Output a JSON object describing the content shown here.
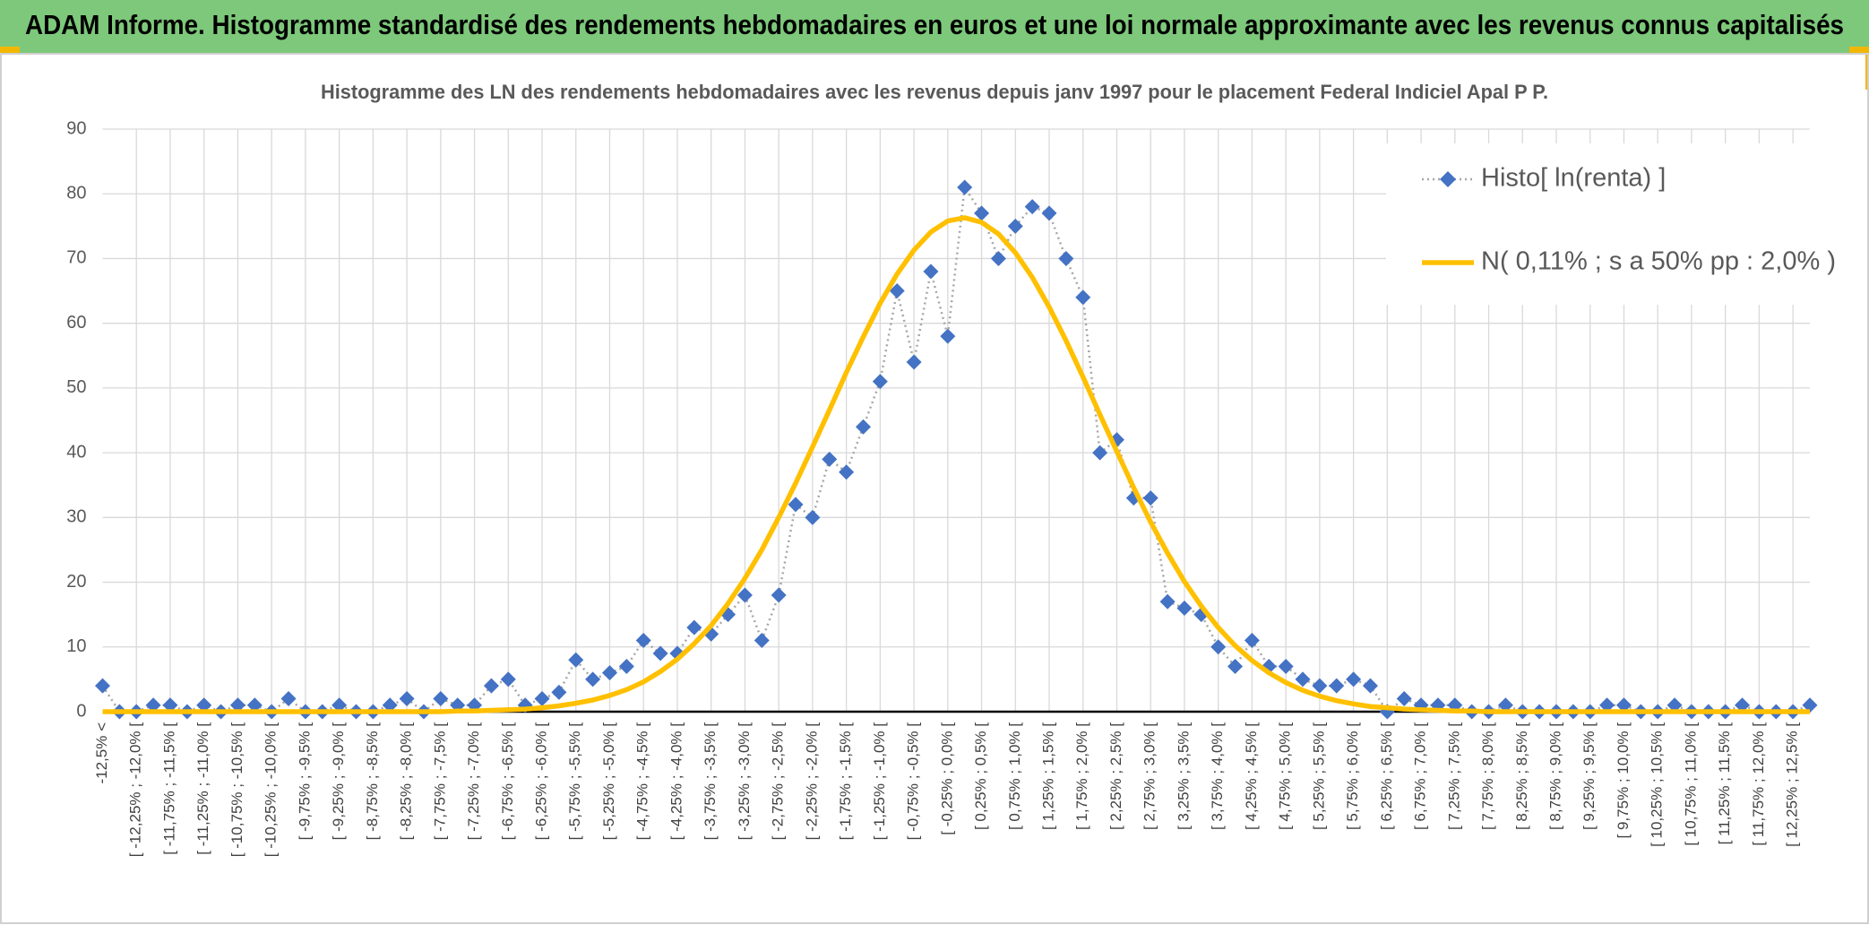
{
  "header": {
    "title": "ADAM Informe. Histogramme standardisé des rendements hebdomadaires en euros et une loi normale approximante avec les revenus connus capitalisés"
  },
  "chart_data": {
    "type": "line",
    "title": "Histogramme des LN des rendements hebdomadaires avec les revenus depuis janv 1997 pour le placement Federal Indiciel Apal P P.",
    "categories": [
      "-12,5% <",
      null,
      "[ -12,25% ; -12,0% [",
      null,
      "[ -11,75% ; -11,5% [",
      null,
      "[ -11,25% ; -11,0% [",
      null,
      "[ -10,75% ; -10,5% [",
      null,
      "[ -10,25% ; -10,0% [",
      null,
      "[ -9,75% ; -9,5% [",
      null,
      "[ -9,25% ; -9,0% [",
      null,
      "[ -8,75% ; -8,5% [",
      null,
      "[ -8,25% ; -8,0% [",
      null,
      "[ -7,75% ; -7,5% [",
      null,
      "[ -7,25% ; -7,0% [",
      null,
      "[ -6,75% ; -6,5% [",
      null,
      "[ -6,25% ; -6,0% [",
      null,
      "[ -5,75% ; -5,5% [",
      null,
      "[ -5,25% ; -5,0% [",
      null,
      "[ -4,75% ; -4,5% [",
      null,
      "[ -4,25% ; -4,0% [",
      null,
      "[ -3,75% ; -3,5% [",
      null,
      "[ -3,25% ; -3,0% [",
      null,
      "[ -2,75% ; -2,5% [",
      null,
      "[ -2,25% ; -2,0% [",
      null,
      "[ -1,75% ; -1,5% [",
      null,
      "[ -1,25% ; -1,0% [",
      null,
      "[ -0,75% ; -0,5% [",
      null,
      "[ -0,25% ; 0,0% [",
      null,
      "[ 0,25% ; 0,5% [",
      null,
      "[ 0,75% ; 1,0% [",
      null,
      "[ 1,25% ; 1,5% [",
      null,
      "[ 1,75% ; 2,0% [",
      null,
      "[ 2,25% ; 2,5% [",
      null,
      "[ 2,75% ; 3,0% [",
      null,
      "[ 3,25% ; 3,5% [",
      null,
      "[ 3,75% ; 4,0% [",
      null,
      "[ 4,25% ; 4,5% [",
      null,
      "[ 4,75% ; 5,0% [",
      null,
      "[ 5,25% ; 5,5% [",
      null,
      "[ 5,75% ; 6,0% [",
      null,
      "[ 6,25% ; 6,5% [",
      null,
      "[ 6,75% ; 7,0% [",
      null,
      "[ 7,25% ; 7,5% [",
      null,
      "[ 7,75% ; 8,0% [",
      null,
      "[ 8,25% ; 8,5% [",
      null,
      "[ 8,75% ; 9,0% [",
      null,
      "[ 9,25% ; 9,5% [",
      null,
      "[ 9,75% ; 10,0% [",
      null,
      "[ 10,25% ; 10,5% [",
      null,
      "[ 10,75% ; 11,0% [",
      null,
      "[ 11,25% ; 11,5% [",
      null,
      "[ 11,75% ; 12,0% [",
      null,
      "[ 12,25% ; 12,5% [",
      null
    ],
    "series": [
      {
        "name": "Histo[ ln(renta) ]",
        "color": "#4472c4",
        "marker": "diamond",
        "line": "dotted",
        "values": [
          4,
          0,
          0,
          1,
          1,
          0,
          1,
          0,
          1,
          1,
          0,
          2,
          0,
          0,
          1,
          0,
          0,
          1,
          2,
          0,
          2,
          1,
          1,
          4,
          5,
          1,
          2,
          3,
          8,
          5,
          6,
          7,
          11,
          9,
          9,
          13,
          12,
          15,
          18,
          11,
          18,
          32,
          30,
          39,
          37,
          44,
          51,
          65,
          54,
          68,
          58,
          81,
          77,
          70,
          75,
          78,
          77,
          70,
          64,
          40,
          42,
          33,
          33,
          17,
          16,
          15,
          10,
          7,
          11,
          7,
          7,
          5,
          4,
          4,
          5,
          4,
          0,
          2,
          1,
          1,
          1,
          0,
          0,
          1,
          0,
          0,
          0,
          0,
          0,
          1,
          1,
          0,
          0,
          1,
          0,
          0,
          0,
          1,
          0,
          0,
          0,
          1
        ]
      },
      {
        "name": "N( 0,11% ; s a 50% pp : 2,0% )",
        "color": "#ffc000",
        "marker": "none",
        "line": "solid",
        "values": [
          0,
          0,
          0,
          0,
          0,
          0,
          0,
          0,
          0,
          0,
          0,
          0,
          0,
          0,
          0,
          0,
          0,
          0,
          0,
          0,
          0,
          0.1,
          0.1,
          0.2,
          0.3,
          0.4,
          0.6,
          0.9,
          1.3,
          1.8,
          2.5,
          3.4,
          4.6,
          6.2,
          8.1,
          10.5,
          13.3,
          16.7,
          20.6,
          25.0,
          30.0,
          35.3,
          40.9,
          46.6,
          52.4,
          57.9,
          63.1,
          67.6,
          71.3,
          74.1,
          75.8,
          76.3,
          75.6,
          73.8,
          70.9,
          67.1,
          62.5,
          57.3,
          51.7,
          45.9,
          40.2,
          34.6,
          29.3,
          24.5,
          20.1,
          16.3,
          13.0,
          10.2,
          7.9,
          6.0,
          4.5,
          3.3,
          2.4,
          1.7,
          1.2,
          0.8,
          0.6,
          0.4,
          0.3,
          0.2,
          0.1,
          0.1,
          0,
          0,
          0,
          0,
          0,
          0,
          0,
          0,
          0,
          0,
          0,
          0,
          0,
          0,
          0,
          0,
          0,
          0,
          0,
          0
        ]
      }
    ],
    "ylim": [
      0,
      90
    ],
    "yticks": [
      0,
      10,
      20,
      30,
      40,
      50,
      60,
      70,
      80,
      90
    ],
    "grid": true,
    "legend": "top-right"
  }
}
